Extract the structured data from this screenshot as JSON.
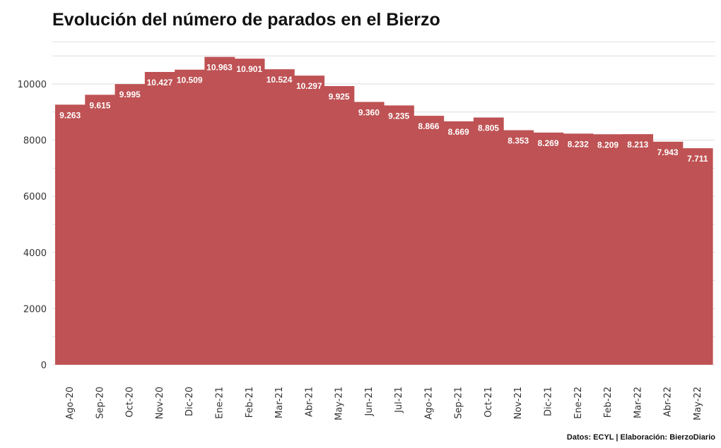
{
  "title": "Evolución del número de parados en el Bierzo",
  "credit": "Datos: ECYL | Elaboración: BierzoDiario",
  "colors": {
    "bar": "#bf5254",
    "grid": "#dddddd",
    "text": "#333333"
  },
  "chart_data": {
    "type": "bar",
    "title": "Evolución del número de parados en el Bierzo",
    "xlabel": "",
    "ylabel": "",
    "ylim": [
      0,
      11500
    ],
    "yticks": [
      0,
      2000,
      4000,
      6000,
      8000,
      10000
    ],
    "grid": true,
    "categories": [
      "Ago-20",
      "Sep-20",
      "Oct-20",
      "Nov-20",
      "Dic-20",
      "Ene-21",
      "Feb-21",
      "Mar-21",
      "Abr-21",
      "May-21",
      "Jun-21",
      "Jul-21",
      "Ago-21",
      "Sep-21",
      "Oct-21",
      "Nov-21",
      "Dic-21",
      "Ene-22",
      "Feb-22",
      "Mar-22",
      "Abr-22",
      "May-22"
    ],
    "values": [
      9263,
      9615,
      9995,
      10427,
      10509,
      10963,
      10901,
      10524,
      10297,
      9925,
      9360,
      9235,
      8866,
      8669,
      8805,
      8353,
      8269,
      8232,
      8209,
      8213,
      7943,
      7711
    ],
    "value_labels": [
      "9.263",
      "9.615",
      "9.995",
      "10.427",
      "10.509",
      "10.963",
      "10.901",
      "10.524",
      "10.297",
      "9.925",
      "9.360",
      "9.235",
      "8.866",
      "8.669",
      "8.805",
      "8.353",
      "8.269",
      "8.232",
      "8.209",
      "8.213",
      "7.943",
      "7.711"
    ]
  }
}
